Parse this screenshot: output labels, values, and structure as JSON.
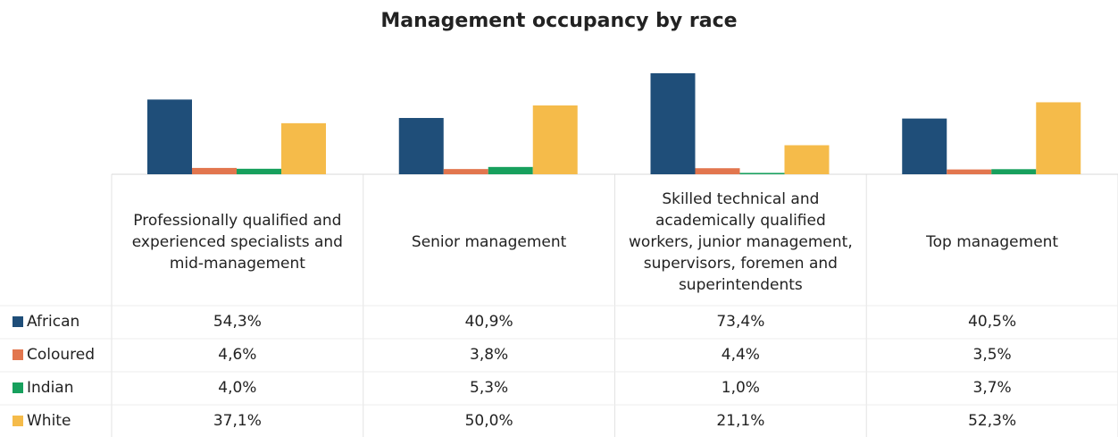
{
  "chart_data": {
    "type": "bar",
    "title": "Management occupancy by race",
    "categories": [
      "Professionally qualified and experienced specialists and mid-management",
      "Senior management",
      "Skilled technical and academically qualified workers, junior management, supervisors, foremen and superintendents",
      "Top management"
    ],
    "series": [
      {
        "name": "African",
        "color": "#1f4e79",
        "values": [
          54.3,
          40.9,
          73.4,
          40.5
        ],
        "value_labels": [
          "54,3%",
          "40,9%",
          "73,4%",
          "40,5%"
        ]
      },
      {
        "name": "Coloured",
        "color": "#e2764e",
        "values": [
          4.6,
          3.8,
          4.4,
          3.5
        ],
        "value_labels": [
          "4,6%",
          "3,8%",
          "4,4%",
          "3,5%"
        ]
      },
      {
        "name": "Indian",
        "color": "#17a05d",
        "values": [
          4.0,
          5.3,
          1.0,
          3.7
        ],
        "value_labels": [
          "4,0%",
          "5,3%",
          "1,0%",
          "3,7%"
        ]
      },
      {
        "name": "White",
        "color": "#f5bb4a",
        "values": [
          37.1,
          50.0,
          21.1,
          52.3
        ],
        "value_labels": [
          "37,1%",
          "50,0%",
          "21,1%",
          "52,3%"
        ]
      }
    ]
  }
}
